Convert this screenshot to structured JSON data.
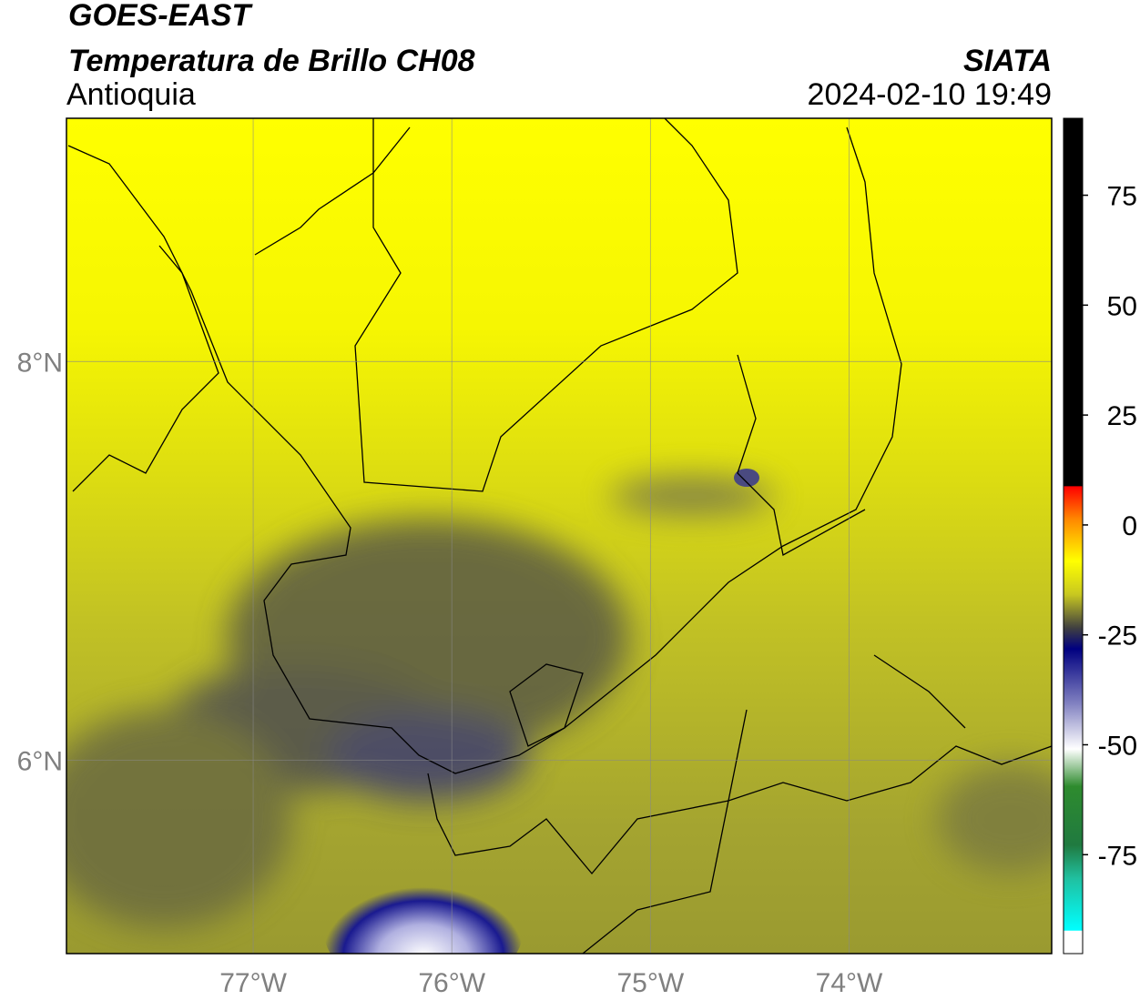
{
  "header": {
    "title": "GOES-EAST",
    "subtitle": "Temperatura de Brillo CH08",
    "region": "Antioquia",
    "source": "SIATA",
    "datetime": "2024-02-10 19:49"
  },
  "map": {
    "xlim": [
      -77.94,
      -72.98
    ],
    "ylim": [
      5.03,
      9.22
    ],
    "xticks": [
      {
        "value": -77,
        "label": "77°W"
      },
      {
        "value": -76,
        "label": "76°W"
      },
      {
        "value": -75,
        "label": "75°W"
      },
      {
        "value": -74,
        "label": "74°W"
      }
    ],
    "yticks": [
      {
        "value": 8,
        "label": "8°N"
      },
      {
        "value": 6,
        "label": "6°N"
      }
    ],
    "grid": true
  },
  "colorbar": {
    "lim": [
      -97.5,
      92.5
    ],
    "ticks": [
      75,
      50,
      25,
      0,
      -25,
      -50,
      -75
    ]
  }
}
